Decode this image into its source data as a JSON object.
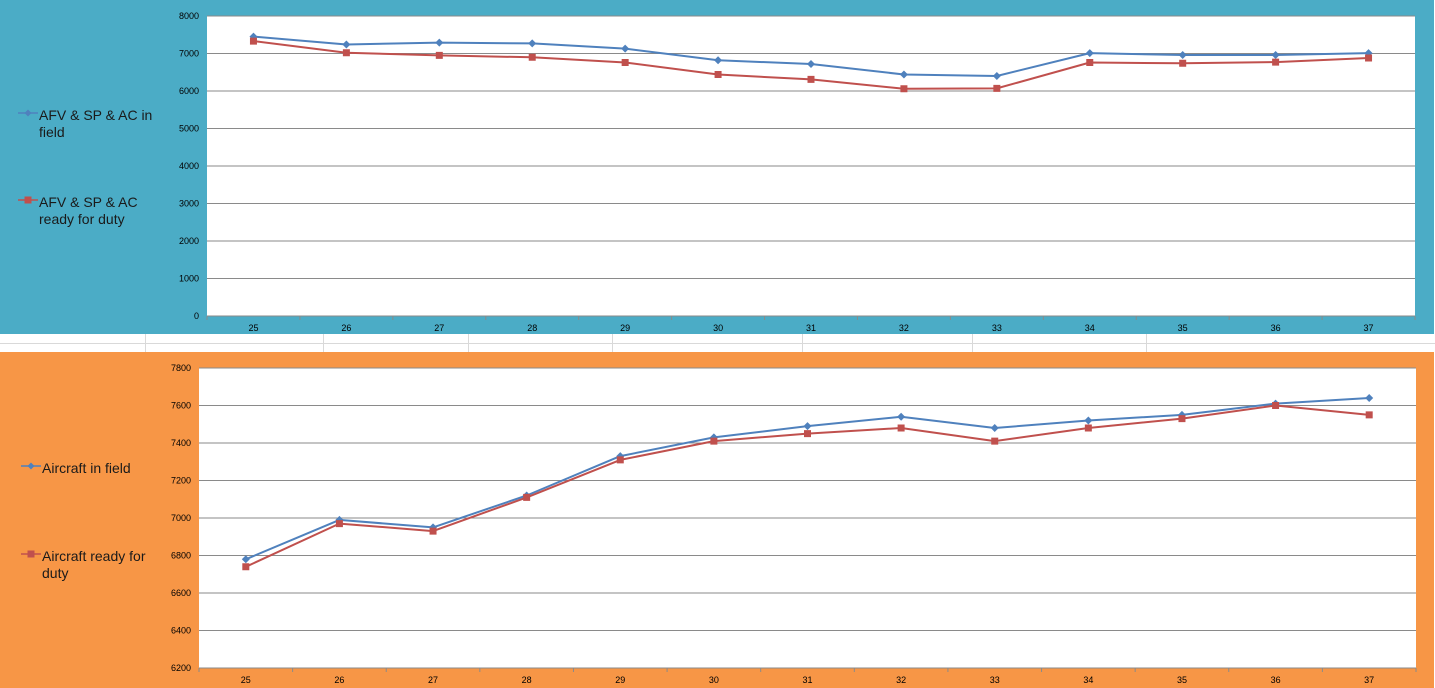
{
  "colors": {
    "top_panel_bg": "#4bacc6",
    "bottom_panel_bg": "#f79646",
    "series_blue": "#4f81bd",
    "series_red": "#c0504d",
    "plot_bg": "#ffffff",
    "gridline": "#8a8a8a"
  },
  "chart_data": [
    {
      "type": "line",
      "title": "",
      "xlabel": "",
      "ylabel": "",
      "x": [
        "25",
        "26",
        "27",
        "28",
        "29",
        "30",
        "31",
        "32",
        "33",
        "34",
        "35",
        "36",
        "37"
      ],
      "ylim": [
        0,
        8000
      ],
      "yticks": [
        "0",
        "1000",
        "2000",
        "3000",
        "4000",
        "5000",
        "6000",
        "7000",
        "8000"
      ],
      "grid": true,
      "legend_position": "left",
      "series": [
        {
          "name": "AFV & SP & AC in field",
          "marker": "diamond",
          "color": "#4f81bd",
          "values": [
            7450,
            7240,
            7290,
            7270,
            7130,
            6820,
            6720,
            6440,
            6400,
            7010,
            6960,
            6960,
            7010
          ]
        },
        {
          "name": "AFV & SP & AC ready for duty",
          "marker": "square",
          "color": "#c0504d",
          "values": [
            7330,
            7020,
            6950,
            6900,
            6760,
            6440,
            6310,
            6060,
            6070,
            6760,
            6740,
            6770,
            6880
          ]
        }
      ]
    },
    {
      "type": "line",
      "title": "",
      "xlabel": "",
      "ylabel": "",
      "x": [
        "25",
        "26",
        "27",
        "28",
        "29",
        "30",
        "31",
        "32",
        "33",
        "34",
        "35",
        "36",
        "37"
      ],
      "ylim": [
        6200,
        7800
      ],
      "yticks": [
        "6200",
        "6400",
        "6600",
        "6800",
        "7000",
        "7200",
        "7400",
        "7600",
        "7800"
      ],
      "grid": true,
      "legend_position": "left",
      "series": [
        {
          "name": "Aircraft in field",
          "marker": "diamond",
          "color": "#4f81bd",
          "values": [
            6780,
            6990,
            6950,
            7120,
            7330,
            7430,
            7490,
            7540,
            7480,
            7520,
            7550,
            7610,
            7640
          ]
        },
        {
          "name": "Aircraft ready for duty",
          "marker": "square",
          "color": "#c0504d",
          "values": [
            6740,
            6970,
            6930,
            7110,
            7310,
            7410,
            7450,
            7480,
            7410,
            7480,
            7530,
            7600,
            7550
          ]
        }
      ]
    }
  ]
}
